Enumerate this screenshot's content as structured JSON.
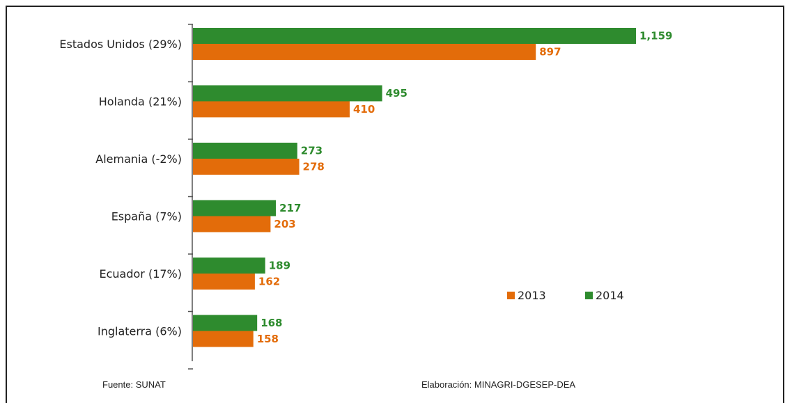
{
  "chart_data": {
    "type": "bar",
    "orientation": "horizontal",
    "categories": [
      "Estados Unidos (29%)",
      "Holanda (21%)",
      "Alemania (-2%)",
      "España (7%)",
      "Ecuador (17%)",
      "Inglaterra (6%)"
    ],
    "series": [
      {
        "name": "2014",
        "color": "#2e8b2e",
        "values": [
          1159,
          495,
          273,
          217,
          189,
          168
        ],
        "labels": [
          "1,159",
          "495",
          "273",
          "217",
          "189",
          "168"
        ]
      },
      {
        "name": "2013",
        "color": "#e36c0a",
        "values": [
          897,
          410,
          278,
          203,
          162,
          158
        ],
        "labels": [
          "897",
          "410",
          "278",
          "203",
          "162",
          "158"
        ]
      }
    ],
    "legend": {
      "position": "bottom-right",
      "order": [
        "2013",
        "2014"
      ]
    },
    "grid": false,
    "xlim": [
      0,
      1159
    ]
  },
  "footer": {
    "source": "Fuente: SUNAT",
    "credit": "Elaboración: MINAGRI-DGESEP-DEA"
  }
}
